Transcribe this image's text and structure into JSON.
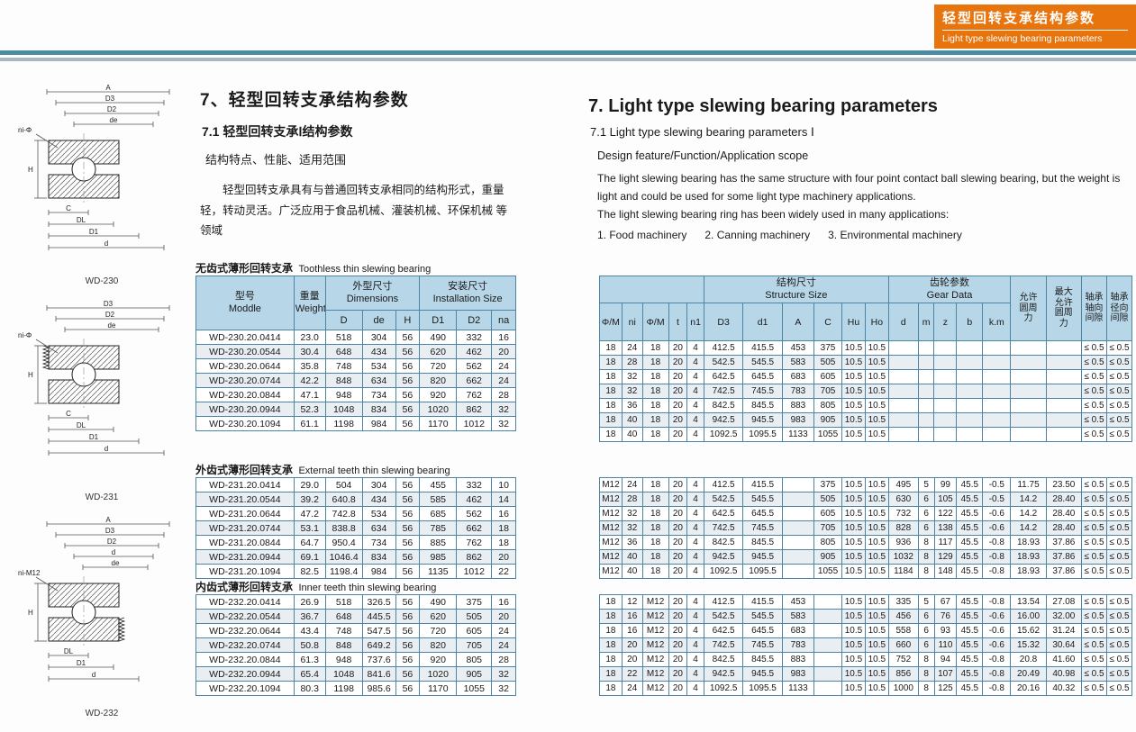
{
  "banner": {
    "title_zh": "轻型回转支承结构参数",
    "title_en": "Light type slewing bearing parameters",
    "bg_color": "#e8740e"
  },
  "intro_zh": {
    "heading": "7、轻型回转支承结构参数",
    "subheading": "7.1 轻型回转支承Ⅰ结构参数",
    "scope_line": "结构特点、性能、适用范围",
    "paragraph": "轻型回转支承具有与普通回转支承相同的结构形式，重量轻，转动灵活。广泛应用于食品机械、灌装机械、环保机械 等领域"
  },
  "intro_en": {
    "heading": "7. Light type slewing bearing parameters",
    "subheading": "7.1  Light type slewing bearing parameters Ⅰ",
    "scope_line": "Design feature/Function/Application scope",
    "para1": "The light slewing bearing has the same structure with four point contact ball slewing bearing, but the weight is light and could be used for some light type machinery applications.",
    "para2": "The light slewing bearing ring has been widely used in many applications:",
    "para3": "1. Food machinery      2. Canning machinery      3. Environmental machinery"
  },
  "figures": [
    {
      "name": "WD-230",
      "teeth": "none",
      "top_labels": [
        "A",
        "D3",
        "D2",
        "de"
      ],
      "note": "ni-Φ",
      "side_label": "H",
      "bottom_labels": [
        "C",
        "DL",
        "D1",
        "d"
      ]
    },
    {
      "name": "WD-231",
      "teeth": "external",
      "top_labels": [
        "D3",
        "D2",
        "de"
      ],
      "note": "ni-Φ",
      "side_label": "H",
      "bottom_labels": [
        "C",
        "DL",
        "D1",
        "d"
      ]
    },
    {
      "name": "WD-232",
      "teeth": "internal",
      "top_labels": [
        "A",
        "D3",
        "D2",
        "d",
        "de"
      ],
      "note": "ni-M12",
      "side_label": "H",
      "bottom_labels": [
        "DL",
        "D1",
        "d"
      ]
    }
  ],
  "dim_table": {
    "header": {
      "model_zh": "型号",
      "model_en": "Moddle",
      "weight_zh": "重量",
      "weight_en": "Weight",
      "dims_zh": "外型尺寸",
      "dims_en": "Dimensions",
      "install_zh": "安装尺寸",
      "install_en": "Installation Size",
      "cols": [
        "D",
        "de",
        "H",
        "D1",
        "D2",
        "na"
      ]
    },
    "sections": [
      {
        "caption_zh": "无齿式薄形回转支承",
        "caption_en": "Toothless thin slewing bearing",
        "rows": [
          [
            "WD-230.20.0414",
            "23.0",
            "518",
            "304",
            "56",
            "490",
            "332",
            "16"
          ],
          [
            "WD-230.20.0544",
            "30.4",
            "648",
            "434",
            "56",
            "620",
            "462",
            "20"
          ],
          [
            "WD-230.20.0644",
            "35.8",
            "748",
            "534",
            "56",
            "720",
            "562",
            "24"
          ],
          [
            "WD-230.20.0744",
            "42.2",
            "848",
            "634",
            "56",
            "820",
            "662",
            "24"
          ],
          [
            "WD-230.20.0844",
            "47.1",
            "948",
            "734",
            "56",
            "920",
            "762",
            "28"
          ],
          [
            "WD-230.20.0944",
            "52.3",
            "1048",
            "834",
            "56",
            "1020",
            "862",
            "32"
          ],
          [
            "WD-230.20.1094",
            "61.1",
            "1198",
            "984",
            "56",
            "1170",
            "1012",
            "32"
          ]
        ]
      },
      {
        "caption_zh": "外齿式薄形回转支承",
        "caption_en": "External teeth thin slewing bearing",
        "rows": [
          [
            "WD-231.20.0414",
            "29.0",
            "504",
            "304",
            "56",
            "455",
            "332",
            "10"
          ],
          [
            "WD-231.20.0544",
            "39.2",
            "640.8",
            "434",
            "56",
            "585",
            "462",
            "14"
          ],
          [
            "WD-231.20.0644",
            "47.2",
            "742.8",
            "534",
            "56",
            "685",
            "562",
            "16"
          ],
          [
            "WD-231.20.0744",
            "53.1",
            "838.8",
            "634",
            "56",
            "785",
            "662",
            "18"
          ],
          [
            "WD-231.20.0844",
            "64.7",
            "950.4",
            "734",
            "56",
            "885",
            "762",
            "18"
          ],
          [
            "WD-231.20.0944",
            "69.1",
            "1046.4",
            "834",
            "56",
            "985",
            "862",
            "20"
          ],
          [
            "WD-231.20.1094",
            "82.5",
            "1198.4",
            "984",
            "56",
            "1135",
            "1012",
            "22"
          ]
        ]
      },
      {
        "caption_zh": "内齿式薄形回转支承",
        "caption_en": "Inner teeth thin slewing bearing",
        "rows": [
          [
            "WD-232.20.0414",
            "26.9",
            "518",
            "326.5",
            "56",
            "490",
            "375",
            "16"
          ],
          [
            "WD-232.20.0544",
            "36.7",
            "648",
            "445.5",
            "56",
            "620",
            "505",
            "20"
          ],
          [
            "WD-232.20.0644",
            "43.4",
            "748",
            "547.5",
            "56",
            "720",
            "605",
            "24"
          ],
          [
            "WD-232.20.0744",
            "50.8",
            "848",
            "649.2",
            "56",
            "820",
            "705",
            "24"
          ],
          [
            "WD-232.20.0844",
            "61.3",
            "948",
            "737.6",
            "56",
            "920",
            "805",
            "28"
          ],
          [
            "WD-232.20.0944",
            "65.4",
            "1048",
            "841.6",
            "56",
            "1020",
            "905",
            "32"
          ],
          [
            "WD-232.20.1094",
            "80.3",
            "1198",
            "985.6",
            "56",
            "1170",
            "1055",
            "32"
          ]
        ]
      }
    ]
  },
  "param_table": {
    "header": {
      "structure_zh": "结构尺寸",
      "structure_en": "Structure Size",
      "gear_zh": "齿轮参数",
      "gear_en": "Gear Data",
      "cols": [
        "Φ/M",
        "ni",
        "Φ/M",
        "t",
        "n1",
        "D3",
        "d1",
        "A",
        "C",
        "Hu",
        "Ho",
        "d",
        "m",
        "z",
        "b",
        "k.m"
      ],
      "vert_cols": [
        "允许圆周力",
        "最大允许圆周力",
        "轴承轴向间隙",
        "轴承径向间隙"
      ]
    },
    "sections": [
      {
        "rows": [
          [
            "18",
            "24",
            "18",
            "20",
            "4",
            "412.5",
            "415.5",
            "453",
            "375",
            "10.5",
            "10.5",
            "",
            "",
            "",
            "",
            "",
            "",
            "",
            "≤ 0.5",
            "≤ 0.5"
          ],
          [
            "18",
            "28",
            "18",
            "20",
            "4",
            "542.5",
            "545.5",
            "583",
            "505",
            "10.5",
            "10.5",
            "",
            "",
            "",
            "",
            "",
            "",
            "",
            "≤ 0.5",
            "≤ 0.5"
          ],
          [
            "18",
            "32",
            "18",
            "20",
            "4",
            "642.5",
            "645.5",
            "683",
            "605",
            "10.5",
            "10.5",
            "",
            "",
            "",
            "",
            "",
            "",
            "",
            "≤ 0.5",
            "≤ 0.5"
          ],
          [
            "18",
            "32",
            "18",
            "20",
            "4",
            "742.5",
            "745.5",
            "783",
            "705",
            "10.5",
            "10.5",
            "",
            "",
            "",
            "",
            "",
            "",
            "",
            "≤ 0.5",
            "≤ 0.5"
          ],
          [
            "18",
            "36",
            "18",
            "20",
            "4",
            "842.5",
            "845.5",
            "883",
            "805",
            "10.5",
            "10.5",
            "",
            "",
            "",
            "",
            "",
            "",
            "",
            "≤ 0.5",
            "≤ 0.5"
          ],
          [
            "18",
            "40",
            "18",
            "20",
            "4",
            "942.5",
            "945.5",
            "983",
            "905",
            "10.5",
            "10.5",
            "",
            "",
            "",
            "",
            "",
            "",
            "",
            "≤ 0.5",
            "≤ 0.5"
          ],
          [
            "18",
            "40",
            "18",
            "20",
            "4",
            "1092.5",
            "1095.5",
            "1133",
            "1055",
            "10.5",
            "10.5",
            "",
            "",
            "",
            "",
            "",
            "",
            "",
            "≤ 0.5",
            "≤ 0.5"
          ]
        ]
      },
      {
        "rows": [
          [
            "M12",
            "24",
            "18",
            "20",
            "4",
            "412.5",
            "415.5",
            "",
            "375",
            "10.5",
            "10.5",
            "495",
            "5",
            "99",
            "45.5",
            "-0.5",
            "11.75",
            "23.50",
            "≤ 0.5",
            "≤ 0.5"
          ],
          [
            "M12",
            "28",
            "18",
            "20",
            "4",
            "542.5",
            "545.5",
            "",
            "505",
            "10.5",
            "10.5",
            "630",
            "6",
            "105",
            "45.5",
            "-0.5",
            "14.2",
            "28.40",
            "≤ 0.5",
            "≤ 0.5"
          ],
          [
            "M12",
            "32",
            "18",
            "20",
            "4",
            "642.5",
            "645.5",
            "",
            "605",
            "10.5",
            "10.5",
            "732",
            "6",
            "122",
            "45.5",
            "-0.6",
            "14.2",
            "28.40",
            "≤ 0.5",
            "≤ 0.5"
          ],
          [
            "M12",
            "32",
            "18",
            "20",
            "4",
            "742.5",
            "745.5",
            "",
            "705",
            "10.5",
            "10.5",
            "828",
            "6",
            "138",
            "45.5",
            "-0.6",
            "14.2",
            "28.40",
            "≤ 0.5",
            "≤ 0.5"
          ],
          [
            "M12",
            "36",
            "18",
            "20",
            "4",
            "842.5",
            "845.5",
            "",
            "805",
            "10.5",
            "10.5",
            "936",
            "8",
            "117",
            "45.5",
            "-0.8",
            "18.93",
            "37.86",
            "≤ 0.5",
            "≤ 0.5"
          ],
          [
            "M12",
            "40",
            "18",
            "20",
            "4",
            "942.5",
            "945.5",
            "",
            "905",
            "10.5",
            "10.5",
            "1032",
            "8",
            "129",
            "45.5",
            "-0.8",
            "18.93",
            "37.86",
            "≤ 0.5",
            "≤ 0.5"
          ],
          [
            "M12",
            "40",
            "18",
            "20",
            "4",
            "1092.5",
            "1095.5",
            "",
            "1055",
            "10.5",
            "10.5",
            "1184",
            "8",
            "148",
            "45.5",
            "-0.8",
            "18.93",
            "37.86",
            "≤ 0.5",
            "≤ 0.5"
          ]
        ]
      },
      {
        "rows": [
          [
            "18",
            "12",
            "M12",
            "20",
            "4",
            "412.5",
            "415.5",
            "453",
            "",
            "10.5",
            "10.5",
            "335",
            "5",
            "67",
            "45.5",
            "-0.8",
            "13.54",
            "27.08",
            "≤ 0.5",
            "≤ 0.5"
          ],
          [
            "18",
            "16",
            "M12",
            "20",
            "4",
            "542.5",
            "545.5",
            "583",
            "",
            "10.5",
            "10.5",
            "456",
            "6",
            "76",
            "45.5",
            "-0.6",
            "16.00",
            "32.00",
            "≤ 0.5",
            "≤ 0.5"
          ],
          [
            "18",
            "16",
            "M12",
            "20",
            "4",
            "642.5",
            "645.5",
            "683",
            "",
            "10.5",
            "10.5",
            "558",
            "6",
            "93",
            "45.5",
            "-0.6",
            "15.62",
            "31.24",
            "≤ 0.5",
            "≤ 0.5"
          ],
          [
            "18",
            "20",
            "M12",
            "20",
            "4",
            "742.5",
            "745.5",
            "783",
            "",
            "10.5",
            "10.5",
            "660",
            "6",
            "110",
            "45.5",
            "-0.6",
            "15.32",
            "30.64",
            "≤ 0.5",
            "≤ 0.5"
          ],
          [
            "18",
            "20",
            "M12",
            "20",
            "4",
            "842.5",
            "845.5",
            "883",
            "",
            "10.5",
            "10.5",
            "752",
            "8",
            "94",
            "45.5",
            "-0.8",
            "20.8",
            "41.60",
            "≤ 0.5",
            "≤ 0.5"
          ],
          [
            "18",
            "22",
            "M12",
            "20",
            "4",
            "942.5",
            "945.5",
            "983",
            "",
            "10.5",
            "10.5",
            "856",
            "8",
            "107",
            "45.5",
            "-0.8",
            "20.49",
            "40.98",
            "≤ 0.5",
            "≤ 0.5"
          ],
          [
            "18",
            "24",
            "M12",
            "20",
            "4",
            "1092.5",
            "1095.5",
            "1133",
            "",
            "10.5",
            "10.5",
            "1000",
            "8",
            "125",
            "45.5",
            "-0.8",
            "20.16",
            "40.32",
            "≤ 0.5",
            "≤ 0.5"
          ]
        ]
      }
    ]
  }
}
